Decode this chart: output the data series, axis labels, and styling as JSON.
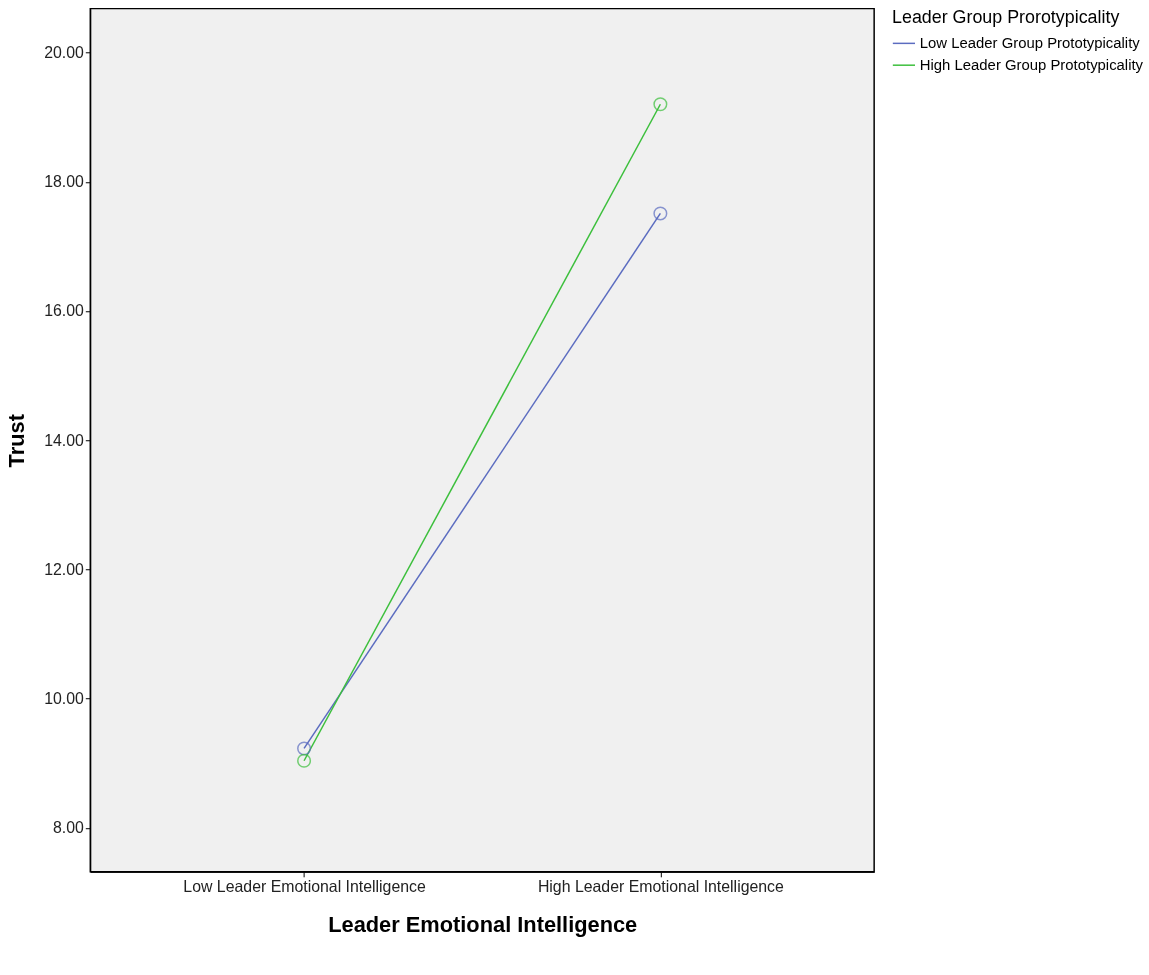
{
  "chart_data": {
    "type": "line",
    "xlabel": "Leader Emotional Intelligence",
    "ylabel": "Trust",
    "legend_title": "Leader Group Prorotypicality",
    "categories": [
      "Low Leader Emotional Intelligence",
      "High Leader Emotional Intelligence"
    ],
    "series": [
      {
        "name": "Low Leader Group Prototypicality",
        "color": "#5b6cc0",
        "values": [
          9.23,
          17.51
        ]
      },
      {
        "name": "High Leader Group Prototypicality",
        "color": "#3cbf3c",
        "values": [
          9.04,
          19.2
        ]
      }
    ],
    "ylim": [
      7.32,
      20.68
    ],
    "yticks": [
      {
        "value": 8,
        "label": "8.00"
      },
      {
        "value": 10,
        "label": "10.00"
      },
      {
        "value": 12,
        "label": "12.00"
      },
      {
        "value": 14,
        "label": "14.00"
      },
      {
        "value": 16,
        "label": "16.00"
      },
      {
        "value": 18,
        "label": "18.00"
      },
      {
        "value": 20,
        "label": "20.00"
      }
    ],
    "marker": "circle",
    "grid": false,
    "legend": "top right"
  }
}
